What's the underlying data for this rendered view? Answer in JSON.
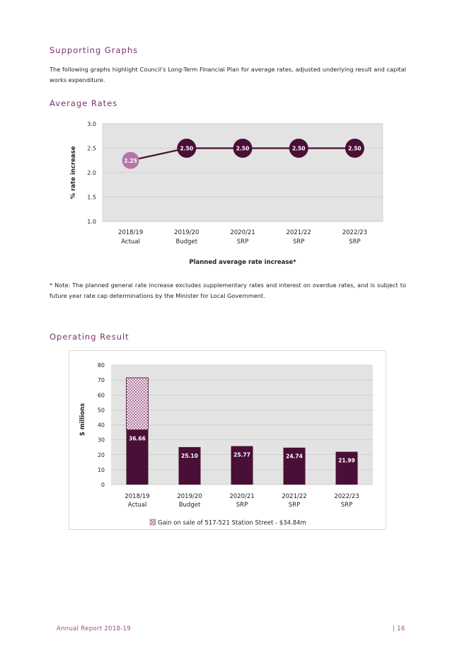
{
  "sections": {
    "supporting": {
      "heading": "Supporting Graphs",
      "intro": "The following graphs highlight Council’s Long-Term Financial Plan for average rates, adjusted underlying result and capital works expenditure."
    },
    "rates": {
      "heading": "Average Rates"
    },
    "note": "* Note: The planned general rate increase excludes supplementary rates and interest on overdue rates, and is subject to future year rate cap determinations by the Minister for Local Government.",
    "operating": {
      "heading": "Operating Result"
    }
  },
  "footer": {
    "left": "Annual Report 2018-19",
    "right": "| 16"
  },
  "colors": {
    "heading": "#7a3366",
    "bar": "#4a0f36",
    "line": "#4a0f36",
    "first_point": "#b873a7",
    "plot_bg": "#e3e3e3"
  },
  "chart_data": [
    {
      "type": "line",
      "title": "",
      "xlabel": "Planned average rate increase*",
      "ylabel": "% rate increase",
      "categories": [
        "2018/19",
        "2019/20",
        "2020/21",
        "2021/22",
        "2022/23"
      ],
      "category_sublabels": [
        "Actual",
        "Budget",
        "SRP",
        "SRP",
        "SRP"
      ],
      "values": [
        2.25,
        2.5,
        2.5,
        2.5,
        2.5
      ],
      "data_labels": [
        "2.25",
        "2.50",
        "2.50",
        "2.50",
        "2.50"
      ],
      "ylim": [
        1.0,
        3.0
      ],
      "yticks": [
        "1.0",
        "1.5",
        "2.0",
        "2.5",
        "3.0"
      ],
      "grid": true
    },
    {
      "type": "bar",
      "title": "",
      "xlabel": "",
      "ylabel": "$ millions",
      "categories": [
        "2018/19",
        "2019/20",
        "2020/21",
        "2021/22",
        "2022/23"
      ],
      "category_sublabels": [
        "Actual",
        "Budget",
        "SRP",
        "SRP",
        "SRP"
      ],
      "values": [
        36.66,
        25.1,
        25.77,
        24.74,
        21.99
      ],
      "data_labels": [
        "36.66",
        "25.10",
        "25.77",
        "24.74",
        "21.99"
      ],
      "stacked_extra": {
        "index": 0,
        "value": 34.84
      },
      "legend": "Gain on sale of 517-521 Station Street - $34.84m",
      "legend_position": "bottom",
      "ylim": [
        0,
        80
      ],
      "yticks": [
        "0",
        "10",
        "20",
        "30",
        "40",
        "50",
        "60",
        "70",
        "80"
      ],
      "grid": true
    }
  ]
}
